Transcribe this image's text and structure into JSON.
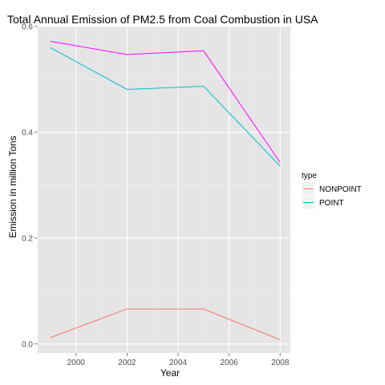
{
  "chart_data": {
    "type": "line",
    "title": "Total Annual Emission of PM2.5 from Coal Combustion in USA",
    "xlabel": "Year",
    "ylabel": "Emission in million Tons",
    "x": [
      1999,
      2002,
      2005,
      2008
    ],
    "xlim": [
      1998.5,
      2008.4
    ],
    "ylim": [
      -0.017,
      0.6
    ],
    "xticks": [
      2000,
      2002,
      2004,
      2006,
      2008
    ],
    "xtick_labels": [
      "2000",
      "2002",
      "2004",
      "2006",
      "2008"
    ],
    "yticks": [
      0.0,
      0.2,
      0.4,
      0.6
    ],
    "ytick_labels": [
      "0.0",
      "0.2",
      "0.4",
      "0.6"
    ],
    "grid": true,
    "legend_position": "right",
    "legend": {
      "title": "type",
      "entries": [
        {
          "label": "NONPOINT",
          "color": "#f8766d"
        },
        {
          "label": "POINT",
          "color": "#00bfc4"
        }
      ]
    },
    "series": [
      {
        "name": "NONPOINT",
        "color": "#f8766d",
        "values": [
          0.012,
          0.066,
          0.066,
          0.008
        ]
      },
      {
        "name": "POINT",
        "color": "#00bfc4",
        "values": [
          0.56,
          0.481,
          0.487,
          0.336
        ]
      },
      {
        "color": "#ff00ff",
        "values": [
          0.572,
          0.547,
          0.554,
          0.343
        ]
      }
    ],
    "colors": {
      "panel_background": "#e5e5e5",
      "grid_major": "#ffffff",
      "grid_minor": "#f2f2f2"
    }
  }
}
